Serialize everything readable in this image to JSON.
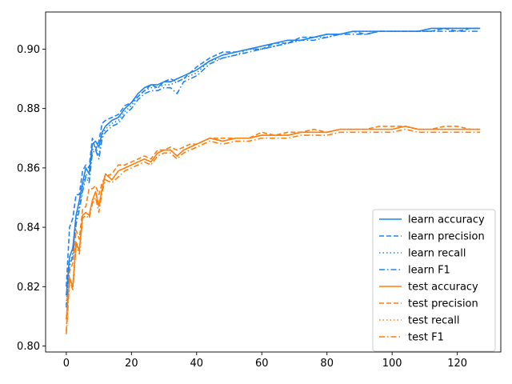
{
  "chart_data": {
    "type": "line",
    "title": "",
    "xlabel": "",
    "ylabel": "",
    "xlim": [
      -6.35,
      133.35
    ],
    "ylim": [
      0.798,
      0.9125
    ],
    "xticks": [
      0,
      20,
      40,
      60,
      80,
      100,
      120
    ],
    "yticks": [
      0.8,
      0.82,
      0.84,
      0.86,
      0.88,
      0.9
    ],
    "ytick_labels": [
      "0.80",
      "0.82",
      "0.84",
      "0.86",
      "0.88",
      "0.90"
    ],
    "grid": false,
    "legend_position": "lower-right",
    "colors": {
      "learn": "#1f83f0",
      "test": "#ff7f0e"
    },
    "series": [
      {
        "name": "learn accuracy",
        "group": "learn",
        "style": "solid",
        "x": [
          0,
          1,
          2,
          3,
          4,
          5,
          6,
          7,
          8,
          9,
          10,
          11,
          12,
          14,
          16,
          18,
          20,
          22,
          24,
          26,
          28,
          30,
          32,
          34,
          36,
          38,
          40,
          44,
          48,
          52,
          56,
          60,
          64,
          68,
          72,
          76,
          80,
          84,
          88,
          92,
          96,
          100,
          104,
          108,
          112,
          116,
          120,
          124,
          127
        ],
        "y": [
          0.817,
          0.83,
          0.833,
          0.844,
          0.849,
          0.855,
          0.86,
          0.858,
          0.868,
          0.869,
          0.867,
          0.872,
          0.874,
          0.876,
          0.877,
          0.88,
          0.882,
          0.885,
          0.887,
          0.888,
          0.888,
          0.889,
          0.889,
          0.89,
          0.891,
          0.892,
          0.893,
          0.896,
          0.898,
          0.899,
          0.9,
          0.901,
          0.902,
          0.903,
          0.903,
          0.904,
          0.905,
          0.905,
          0.906,
          0.906,
          0.906,
          0.906,
          0.906,
          0.906,
          0.907,
          0.907,
          0.907,
          0.907,
          0.907
        ]
      },
      {
        "name": "learn precision",
        "group": "learn",
        "style": "dashed",
        "x": [
          0,
          1,
          2,
          3,
          4,
          5,
          6,
          7,
          8,
          9,
          10,
          11,
          12,
          14,
          16,
          18,
          20,
          22,
          24,
          26,
          28,
          30,
          32,
          34,
          36,
          38,
          40,
          44,
          48,
          52,
          56,
          60,
          64,
          68,
          72,
          76,
          80,
          84,
          88,
          92,
          96,
          100,
          104,
          108,
          112,
          116,
          120,
          124,
          127
        ],
        "y": [
          0.82,
          0.84,
          0.843,
          0.851,
          0.851,
          0.859,
          0.861,
          0.86,
          0.87,
          0.866,
          0.869,
          0.875,
          0.876,
          0.877,
          0.878,
          0.881,
          0.882,
          0.884,
          0.886,
          0.888,
          0.887,
          0.889,
          0.89,
          0.889,
          0.89,
          0.892,
          0.894,
          0.897,
          0.899,
          0.899,
          0.9,
          0.9,
          0.902,
          0.902,
          0.904,
          0.904,
          0.905,
          0.905,
          0.906,
          0.905,
          0.906,
          0.906,
          0.906,
          0.906,
          0.906,
          0.907,
          0.906,
          0.907,
          0.907
        ]
      },
      {
        "name": "learn recall",
        "group": "learn",
        "style": "dotted",
        "x": [
          0,
          1,
          2,
          3,
          4,
          5,
          6,
          7,
          8,
          9,
          10,
          11,
          12,
          14,
          16,
          18,
          20,
          22,
          24,
          26,
          28,
          30,
          32,
          34,
          36,
          38,
          40,
          44,
          48,
          52,
          56,
          60,
          64,
          68,
          72,
          76,
          80,
          84,
          88,
          92,
          96,
          100,
          104,
          108,
          112,
          116,
          120,
          124,
          127
        ],
        "y": [
          0.814,
          0.828,
          0.831,
          0.842,
          0.847,
          0.853,
          0.858,
          0.856,
          0.866,
          0.867,
          0.864,
          0.871,
          0.873,
          0.875,
          0.876,
          0.879,
          0.881,
          0.884,
          0.886,
          0.887,
          0.887,
          0.888,
          0.888,
          0.889,
          0.89,
          0.891,
          0.892,
          0.896,
          0.897,
          0.898,
          0.9,
          0.9,
          0.901,
          0.902,
          0.903,
          0.904,
          0.904,
          0.905,
          0.906,
          0.906,
          0.906,
          0.906,
          0.906,
          0.906,
          0.906,
          0.907,
          0.907,
          0.907,
          0.907
        ]
      },
      {
        "name": "learn F1",
        "group": "learn",
        "style": "dashdot",
        "x": [
          0,
          1,
          2,
          3,
          4,
          5,
          6,
          7,
          8,
          9,
          10,
          11,
          12,
          14,
          16,
          18,
          20,
          22,
          24,
          26,
          28,
          30,
          32,
          34,
          36,
          38,
          40,
          44,
          48,
          52,
          56,
          60,
          64,
          68,
          72,
          76,
          80,
          84,
          88,
          92,
          96,
          100,
          104,
          108,
          112,
          116,
          120,
          124,
          127
        ],
        "y": [
          0.813,
          0.827,
          0.83,
          0.841,
          0.846,
          0.852,
          0.857,
          0.855,
          0.865,
          0.866,
          0.863,
          0.87,
          0.872,
          0.874,
          0.875,
          0.878,
          0.88,
          0.883,
          0.885,
          0.886,
          0.886,
          0.887,
          0.887,
          0.885,
          0.889,
          0.89,
          0.891,
          0.895,
          0.897,
          0.898,
          0.899,
          0.9,
          0.901,
          0.902,
          0.903,
          0.903,
          0.904,
          0.905,
          0.905,
          0.905,
          0.906,
          0.906,
          0.906,
          0.906,
          0.906,
          0.906,
          0.906,
          0.906,
          0.906
        ]
      },
      {
        "name": "test accuracy",
        "group": "test",
        "style": "solid",
        "x": [
          0,
          1,
          2,
          3,
          4,
          5,
          6,
          7,
          8,
          9,
          10,
          11,
          12,
          14,
          16,
          18,
          20,
          22,
          24,
          26,
          28,
          30,
          32,
          34,
          36,
          38,
          40,
          44,
          48,
          52,
          56,
          60,
          64,
          68,
          72,
          76,
          80,
          84,
          88,
          92,
          96,
          100,
          104,
          108,
          112,
          116,
          120,
          124,
          127
        ],
        "y": [
          0.809,
          0.823,
          0.82,
          0.835,
          0.832,
          0.844,
          0.845,
          0.844,
          0.849,
          0.852,
          0.847,
          0.853,
          0.858,
          0.856,
          0.859,
          0.86,
          0.861,
          0.862,
          0.863,
          0.862,
          0.865,
          0.866,
          0.866,
          0.864,
          0.866,
          0.867,
          0.868,
          0.87,
          0.869,
          0.87,
          0.87,
          0.871,
          0.871,
          0.871,
          0.872,
          0.872,
          0.872,
          0.873,
          0.873,
          0.873,
          0.873,
          0.873,
          0.874,
          0.873,
          0.873,
          0.873,
          0.873,
          0.873,
          0.873
        ]
      },
      {
        "name": "test precision",
        "group": "test",
        "style": "dashed",
        "x": [
          0,
          1,
          2,
          3,
          4,
          5,
          6,
          7,
          8,
          9,
          10,
          11,
          12,
          14,
          16,
          18,
          20,
          22,
          24,
          26,
          28,
          30,
          32,
          34,
          36,
          38,
          40,
          44,
          48,
          52,
          56,
          60,
          64,
          68,
          72,
          76,
          80,
          84,
          88,
          92,
          96,
          100,
          104,
          108,
          112,
          116,
          120,
          124,
          127
        ],
        "y": [
          0.805,
          0.825,
          0.828,
          0.839,
          0.836,
          0.846,
          0.847,
          0.853,
          0.853,
          0.854,
          0.851,
          0.855,
          0.857,
          0.858,
          0.861,
          0.861,
          0.862,
          0.863,
          0.864,
          0.863,
          0.866,
          0.866,
          0.867,
          0.866,
          0.867,
          0.868,
          0.868,
          0.87,
          0.87,
          0.87,
          0.87,
          0.872,
          0.871,
          0.872,
          0.872,
          0.873,
          0.872,
          0.873,
          0.873,
          0.873,
          0.874,
          0.874,
          0.874,
          0.873,
          0.873,
          0.874,
          0.874,
          0.873,
          0.873
        ]
      },
      {
        "name": "test recall",
        "group": "test",
        "style": "dotted",
        "x": [
          0,
          1,
          2,
          3,
          4,
          5,
          6,
          7,
          8,
          9,
          10,
          11,
          12,
          14,
          16,
          18,
          20,
          22,
          24,
          26,
          28,
          30,
          32,
          34,
          36,
          38,
          40,
          44,
          48,
          52,
          56,
          60,
          64,
          68,
          72,
          76,
          80,
          84,
          88,
          92,
          96,
          100,
          104,
          108,
          112,
          116,
          120,
          124,
          127
        ],
        "y": [
          0.809,
          0.823,
          0.82,
          0.835,
          0.832,
          0.844,
          0.845,
          0.844,
          0.849,
          0.852,
          0.847,
          0.853,
          0.858,
          0.856,
          0.859,
          0.86,
          0.861,
          0.862,
          0.863,
          0.862,
          0.865,
          0.866,
          0.866,
          0.864,
          0.866,
          0.867,
          0.868,
          0.87,
          0.869,
          0.87,
          0.87,
          0.871,
          0.871,
          0.871,
          0.872,
          0.872,
          0.872,
          0.873,
          0.873,
          0.873,
          0.873,
          0.873,
          0.874,
          0.873,
          0.873,
          0.873,
          0.873,
          0.873,
          0.873
        ]
      },
      {
        "name": "test F1",
        "group": "test",
        "style": "dashdot",
        "x": [
          0,
          1,
          2,
          3,
          4,
          5,
          6,
          7,
          8,
          9,
          10,
          11,
          12,
          14,
          16,
          18,
          20,
          22,
          24,
          26,
          28,
          30,
          32,
          34,
          36,
          38,
          40,
          44,
          48,
          52,
          56,
          60,
          64,
          68,
          72,
          76,
          80,
          84,
          88,
          92,
          96,
          100,
          104,
          108,
          112,
          116,
          120,
          124,
          127
        ],
        "y": [
          0.804,
          0.822,
          0.819,
          0.834,
          0.831,
          0.843,
          0.844,
          0.843,
          0.848,
          0.85,
          0.845,
          0.852,
          0.856,
          0.855,
          0.857,
          0.859,
          0.86,
          0.861,
          0.862,
          0.861,
          0.864,
          0.865,
          0.865,
          0.863,
          0.865,
          0.866,
          0.867,
          0.869,
          0.868,
          0.869,
          0.869,
          0.87,
          0.87,
          0.87,
          0.871,
          0.871,
          0.871,
          0.872,
          0.872,
          0.872,
          0.872,
          0.872,
          0.873,
          0.872,
          0.872,
          0.872,
          0.872,
          0.872,
          0.872
        ]
      }
    ]
  }
}
